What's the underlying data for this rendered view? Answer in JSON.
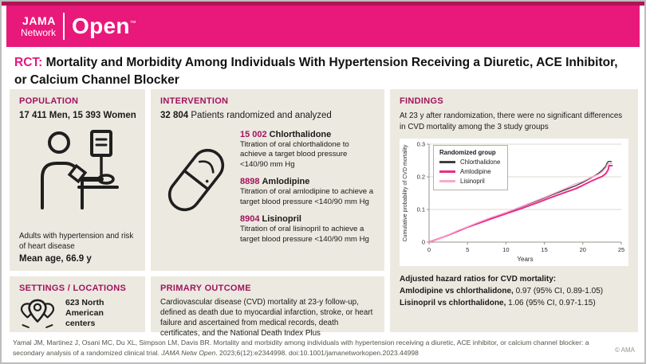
{
  "banner": {
    "brand_top": "JAMA",
    "brand_bottom": "Network",
    "brand_right": "Open",
    "trademark": "™"
  },
  "title": {
    "prefix": "RCT:",
    "text": " Mortality and Morbidity Among Individuals With Hypertension Receiving a Diuretic, ACE Inhibitor, or Calcium Channel Blocker"
  },
  "population": {
    "heading": "POPULATION",
    "headline": "17 411 Men, 15 393 Women",
    "description": "Adults with hypertension and risk of heart disease",
    "mean_age": "Mean age, 66.9 y"
  },
  "settings": {
    "heading": "SETTINGS / LOCATIONS",
    "text": "623 North American centers"
  },
  "intervention": {
    "heading": "INTERVENTION",
    "count": "32 804",
    "count_suffix": " Patients randomized and analyzed",
    "groups": [
      {
        "n": "15 002",
        "name": "Chlorthalidone",
        "description": "Titration of oral chlorthalidone to achieve a target blood pressure <140/90 mm Hg"
      },
      {
        "n": "8898",
        "name": "Amlodipine",
        "description": "Titration of oral amlodipine to achieve a target blood pressure <140/90 mm Hg"
      },
      {
        "n": "8904",
        "name": "Lisinopril",
        "description": "Titration of oral lisinopril to achieve a target blood pressure <140/90 mm Hg"
      }
    ]
  },
  "primary_outcome": {
    "heading": "PRIMARY OUTCOME",
    "text": "Cardiovascular disease (CVD) mortality at 23-y follow-up, defined as death due to myocardial infarction, stroke, or heart failure and ascertained from medical records, death certificates, and the National Death Index Plus"
  },
  "findings": {
    "heading": "FINDINGS",
    "summary": "At 23 y after randomization, there were no significant differences in CVD mortality among the 3 study groups",
    "hazard_title": "Adjusted hazard ratios for CVD mortality:",
    "hazard_lines": [
      {
        "bold": "Amlodipine vs chlorthalidone,",
        "rest": " 0.97 (95% CI, 0.89-1.05)"
      },
      {
        "bold": "Lisinopril vs chlorthalidone,",
        "rest": " 1.06 (95% CI, 0.97-1.15)"
      }
    ]
  },
  "chart_data": {
    "type": "line",
    "title": "",
    "xlabel": "Years",
    "ylabel": "Cumulative probability of CVD mortality",
    "xlim": [
      0,
      25
    ],
    "ylim": [
      0,
      0.3
    ],
    "xticks": [
      "0",
      "5",
      "10",
      "15",
      "20",
      "25"
    ],
    "yticks": [
      "0",
      "0.1",
      "0.2",
      "0.3"
    ],
    "grid": true,
    "legend_title": "Randomized group",
    "legend_position": "upper-left",
    "series": [
      {
        "name": "Chlorthalidone",
        "color": "#3F3F3F",
        "width": 1.4,
        "points": [
          [
            0,
            0
          ],
          [
            2,
            0.017
          ],
          [
            4,
            0.037
          ],
          [
            5,
            0.047
          ],
          [
            6,
            0.056
          ],
          [
            8,
            0.074
          ],
          [
            10,
            0.09
          ],
          [
            12,
            0.108
          ],
          [
            14,
            0.126
          ],
          [
            15,
            0.135
          ],
          [
            16,
            0.145
          ],
          [
            18,
            0.163
          ],
          [
            19,
            0.172
          ],
          [
            20,
            0.183
          ],
          [
            21,
            0.196
          ],
          [
            22,
            0.21
          ],
          [
            22.5,
            0.22
          ],
          [
            23,
            0.233
          ],
          [
            23.1,
            0.24
          ],
          [
            23.3,
            0.247
          ],
          [
            23.7,
            0.247
          ]
        ]
      },
      {
        "name": "Amlodipine",
        "color": "#EE2A8C",
        "width": 2,
        "points": [
          [
            0,
            0
          ],
          [
            2,
            0.017
          ],
          [
            4,
            0.036
          ],
          [
            5,
            0.046
          ],
          [
            6,
            0.054
          ],
          [
            8,
            0.071
          ],
          [
            10,
            0.087
          ],
          [
            12,
            0.103
          ],
          [
            14,
            0.12
          ],
          [
            15,
            0.129
          ],
          [
            16,
            0.138
          ],
          [
            18,
            0.155
          ],
          [
            19,
            0.163
          ],
          [
            20,
            0.174
          ],
          [
            21,
            0.186
          ],
          [
            22,
            0.196
          ],
          [
            22.5,
            0.201
          ],
          [
            23,
            0.21
          ],
          [
            23.3,
            0.222
          ],
          [
            23.4,
            0.234
          ],
          [
            23.8,
            0.234
          ]
        ]
      },
      {
        "name": "Lisinopril",
        "color": "#F8A9CC",
        "width": 1.4,
        "points": [
          [
            0,
            0
          ],
          [
            2,
            0.017
          ],
          [
            4,
            0.038
          ],
          [
            5,
            0.047
          ],
          [
            6,
            0.057
          ],
          [
            8,
            0.075
          ],
          [
            10,
            0.091
          ],
          [
            12,
            0.109
          ],
          [
            14,
            0.128
          ],
          [
            15,
            0.137
          ],
          [
            16,
            0.147
          ],
          [
            18,
            0.167
          ],
          [
            19,
            0.178
          ],
          [
            20,
            0.186
          ],
          [
            21,
            0.198
          ],
          [
            22,
            0.207
          ],
          [
            22.5,
            0.215
          ],
          [
            23,
            0.228
          ],
          [
            23.2,
            0.238
          ],
          [
            23.5,
            0.241
          ],
          [
            23.8,
            0.241
          ]
        ]
      }
    ]
  },
  "footer": {
    "citation_before": "Yamal JM, Martinez J, Osani MC, Du XL, Simpson LM, Davis BR. Mortality and morbidity among individuals with hypertension receiving a diuretic, ACE inhibitor, or calcium channel blocker: a secondary analysis of a randomized clinical trial. ",
    "citation_journal": "JAMA Netw Open",
    "citation_after": ". 2023;6(12):e2344998. doi:10.1001/jamanetworkopen.2023.44998",
    "copyright": "© AMA"
  },
  "colors": {
    "banner_pink": "#E8197B",
    "accent_dark": "#B11355",
    "heading_magenta": "#A1135E",
    "panel_bg": "#ECE9E0",
    "line_chlorthalidone": "#3F3F3F",
    "line_amlodipine": "#EE2A8C",
    "line_lisinopril": "#F8A9CC"
  }
}
